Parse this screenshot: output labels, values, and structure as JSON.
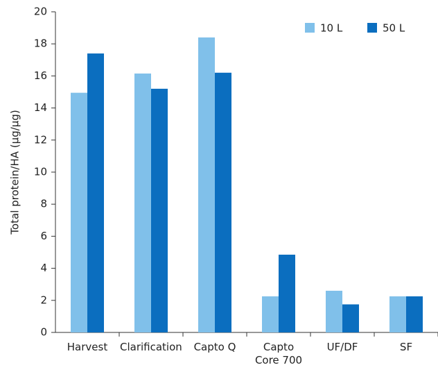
{
  "chart_data": {
    "type": "bar",
    "ylabel": "Total protein/HA (µg/µg)",
    "categories": [
      "Harvest",
      "Clarification",
      "Capto Q",
      "Capto Core 700",
      "UF/DF",
      "SF"
    ],
    "series": [
      {
        "name": "10 L",
        "color": "#80c0ea",
        "values": [
          14.95,
          16.15,
          18.4,
          2.25,
          2.6,
          2.25
        ]
      },
      {
        "name": "50 L",
        "color": "#0b6ebf",
        "values": [
          17.4,
          15.2,
          16.2,
          4.85,
          1.75,
          2.25
        ]
      }
    ],
    "ylim": [
      0,
      20
    ],
    "yticks": [
      0,
      2,
      4,
      6,
      8,
      10,
      12,
      14,
      16,
      18,
      20
    ],
    "legend": "upper right"
  }
}
